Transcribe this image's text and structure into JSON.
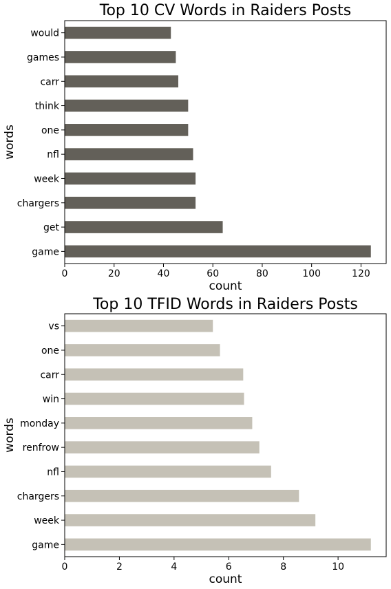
{
  "chart_data": [
    {
      "type": "bar",
      "orientation": "horizontal",
      "title": "Top 10 CV Words in Raiders Posts",
      "xlabel": "count",
      "ylabel": "words",
      "categories": [
        "would",
        "games",
        "carr",
        "think",
        "one",
        "nfl",
        "week",
        "chargers",
        "get",
        "game"
      ],
      "values": [
        43,
        45,
        46,
        50,
        50,
        52,
        53,
        53,
        64,
        124
      ],
      "xticks": [
        0,
        20,
        40,
        60,
        80,
        100,
        120
      ],
      "xlim": [
        0,
        130.2
      ],
      "bar_color": "#636059",
      "grid": false
    },
    {
      "type": "bar",
      "orientation": "horizontal",
      "title": "Top 10 TFID Words in Raiders Posts",
      "xlabel": "count",
      "ylabel": "words",
      "categories": [
        "vs",
        "one",
        "carr",
        "win",
        "monday",
        "renfrow",
        "nfl",
        "chargers",
        "week",
        "game"
      ],
      "values": [
        5.42,
        5.68,
        6.53,
        6.56,
        6.86,
        7.12,
        7.55,
        8.57,
        9.17,
        11.2
      ],
      "xticks": [
        0,
        2,
        4,
        6,
        8,
        10
      ],
      "xlim": [
        0,
        11.76
      ],
      "bar_color": "#c5c1b6",
      "grid": false
    }
  ]
}
